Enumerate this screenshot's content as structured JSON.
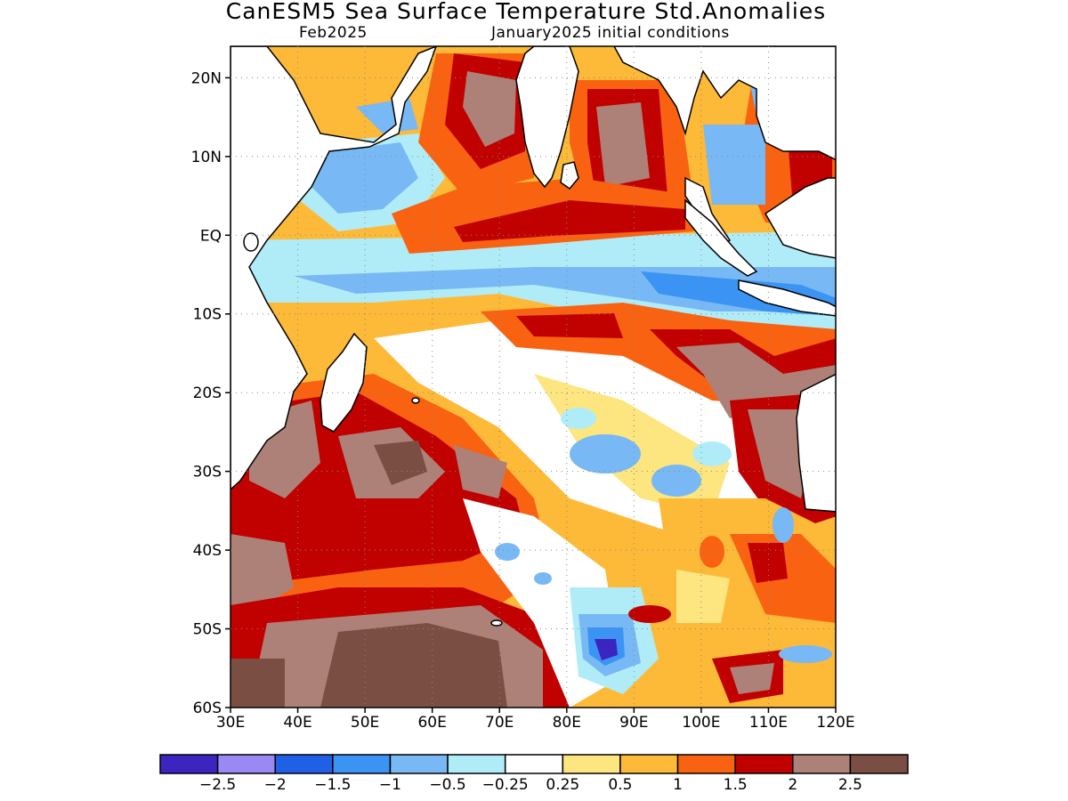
{
  "title": "CanESM5 Sea Surface Temperature Std.Anomalies",
  "subtitle_left": "Feb2025",
  "subtitle_right": "January2025 initial conditions",
  "map": {
    "lon_range": [
      30,
      120
    ],
    "lat_range": [
      -60,
      24
    ],
    "lat_ticks": [
      {
        "value": 20,
        "label": "20N"
      },
      {
        "value": 10,
        "label": "10N"
      },
      {
        "value": 0,
        "label": "EQ"
      },
      {
        "value": -10,
        "label": "10S"
      },
      {
        "value": -20,
        "label": "20S"
      },
      {
        "value": -30,
        "label": "30S"
      },
      {
        "value": -40,
        "label": "40S"
      },
      {
        "value": -50,
        "label": "50S"
      },
      {
        "value": -60,
        "label": "60S"
      }
    ],
    "lon_ticks": [
      {
        "value": 30,
        "label": "30E"
      },
      {
        "value": 40,
        "label": "40E"
      },
      {
        "value": 50,
        "label": "50E"
      },
      {
        "value": 60,
        "label": "60E"
      },
      {
        "value": 70,
        "label": "70E"
      },
      {
        "value": 80,
        "label": "80E"
      },
      {
        "value": 90,
        "label": "90E"
      },
      {
        "value": 100,
        "label": "100E"
      },
      {
        "value": 110,
        "label": "110E"
      },
      {
        "value": 120,
        "label": "120E"
      }
    ],
    "grid": true
  },
  "colorbar": {
    "colors": [
      "#3b24c0",
      "#9a88f5",
      "#1f60e6",
      "#3b94f3",
      "#78b8f5",
      "#b0ecf7",
      "#ffffff",
      "#fde580",
      "#fdb938",
      "#f86210",
      "#c10000",
      "#ad8178",
      "#7a4e42"
    ],
    "labels": [
      "−2.5",
      "−2",
      "−1.5",
      "−1",
      "−0.5",
      "−0.25",
      "0.25",
      "0.5",
      "1",
      "1.5",
      "2",
      "2.5"
    ]
  }
}
